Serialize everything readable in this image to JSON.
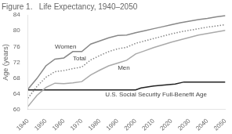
{
  "chart_data": {
    "type": "line",
    "title": "Figure 1.   Life Expectancy, 1940–2050",
    "ylabel": "Age (years)",
    "xlim": [
      1940,
      2050
    ],
    "ylim": [
      60,
      84
    ],
    "xticks": [
      1940,
      1950,
      1960,
      1970,
      1980,
      1990,
      2000,
      2010,
      2020,
      2030,
      2040,
      2050
    ],
    "yticks": [
      60,
      64,
      68,
      72,
      76,
      80,
      84
    ],
    "grid": false,
    "series": [
      {
        "name": "Women",
        "color": "#888888",
        "line_style": "solid",
        "x": [
          1940,
          1945,
          1950,
          1955,
          1960,
          1965,
          1970,
          1975,
          1980,
          1985,
          1990,
          1995,
          2000,
          2005,
          2010,
          2015,
          2020,
          2025,
          2030,
          2035,
          2040,
          2045,
          2050
        ],
        "values": [
          65.2,
          67.9,
          71.1,
          72.8,
          73.1,
          74.7,
          74.7,
          76.6,
          77.4,
          78.2,
          78.8,
          78.9,
          79.5,
          80.0,
          80.5,
          81.0,
          81.5,
          82.0,
          82.4,
          82.8,
          83.1,
          83.5,
          83.8
        ]
      },
      {
        "name": "Total",
        "color": "#888888",
        "line_style": "dotted",
        "x": [
          1940,
          1945,
          1950,
          1955,
          1960,
          1965,
          1970,
          1975,
          1980,
          1985,
          1990,
          1995,
          2000,
          2005,
          2010,
          2015,
          2020,
          2025,
          2030,
          2035,
          2040,
          2045,
          2050
        ],
        "values": [
          62.9,
          65.9,
          68.2,
          69.6,
          69.9,
          70.4,
          70.8,
          72.6,
          73.7,
          74.7,
          75.4,
          75.8,
          76.8,
          77.4,
          78.0,
          78.6,
          79.2,
          79.7,
          80.1,
          80.5,
          80.9,
          81.2,
          81.5
        ]
      },
      {
        "name": "Men",
        "color": "#aaaaaa",
        "line_style": "solid",
        "x": [
          1940,
          1945,
          1950,
          1955,
          1960,
          1965,
          1970,
          1975,
          1980,
          1985,
          1990,
          1995,
          2000,
          2005,
          2010,
          2015,
          2020,
          2025,
          2030,
          2035,
          2040,
          2045,
          2050
        ],
        "values": [
          60.8,
          63.6,
          65.6,
          66.7,
          66.6,
          66.8,
          67.1,
          68.8,
          70.0,
          71.1,
          71.8,
          72.5,
          74.1,
          74.9,
          75.7,
          76.4,
          77.1,
          77.7,
          78.3,
          78.9,
          79.3,
          79.7,
          80.1
        ]
      },
      {
        "name": "U.S. Social Security Full-Benefit Age",
        "color": "#222222",
        "line_style": "solid",
        "x": [
          1940,
          1983,
          2000,
          2003,
          2010,
          2022,
          2027,
          2050
        ],
        "values": [
          65.0,
          65.0,
          65.0,
          65.5,
          66.0,
          66.5,
          67.0,
          67.0
        ]
      }
    ]
  }
}
